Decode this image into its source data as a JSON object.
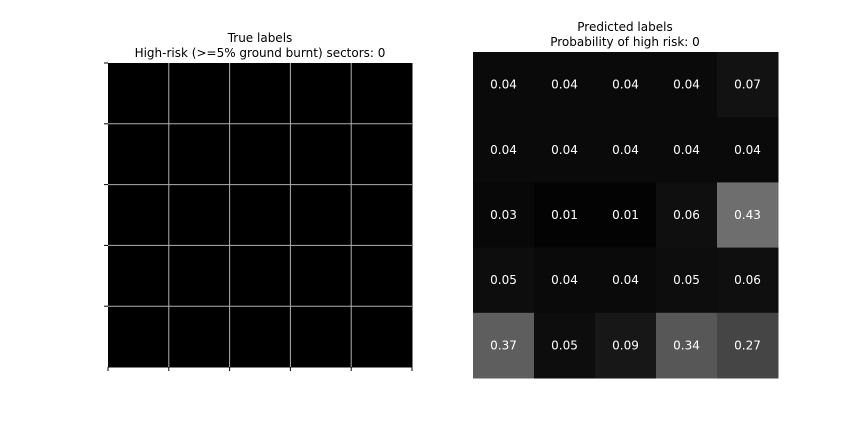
{
  "chart_data": [
    {
      "type": "heatmap",
      "title": "True labels",
      "subtitle": "High-risk (>=5% ground burnt) sectors: 0",
      "rows": 5,
      "cols": 5,
      "values": [
        [
          0,
          0,
          0,
          0,
          0
        ],
        [
          0,
          0,
          0,
          0,
          0
        ],
        [
          0,
          0,
          0,
          0,
          0
        ],
        [
          0,
          0,
          0,
          0,
          0
        ],
        [
          0,
          0,
          0,
          0,
          0
        ]
      ],
      "colormap": "gray",
      "value_range": [
        0,
        1
      ],
      "grid": true,
      "grid_color": "#b0b0b0",
      "tick_labels": false,
      "cell_labels": false
    },
    {
      "type": "heatmap",
      "title": "Predicted labels",
      "subtitle": "Probability of high risk: 0",
      "rows": 5,
      "cols": 5,
      "values": [
        [
          0.04,
          0.04,
          0.04,
          0.04,
          0.07
        ],
        [
          0.04,
          0.04,
          0.04,
          0.04,
          0.04
        ],
        [
          0.03,
          0.01,
          0.01,
          0.06,
          0.43
        ],
        [
          0.05,
          0.04,
          0.04,
          0.05,
          0.06
        ],
        [
          0.37,
          0.05,
          0.09,
          0.34,
          0.27
        ]
      ],
      "colormap": "gray",
      "value_range": [
        0,
        1
      ],
      "grid": false,
      "tick_labels": false,
      "cell_labels": true,
      "cell_label_color": "#ffffff"
    }
  ]
}
